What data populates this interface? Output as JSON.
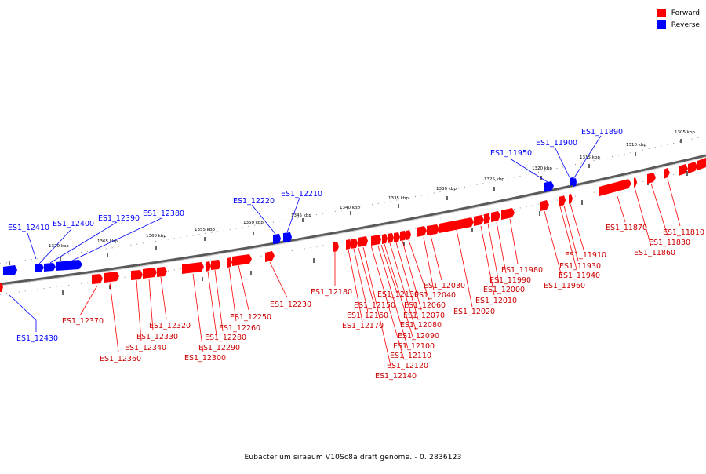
{
  "caption": "Eubacterium siraeum V10Sc8a draft genome. - 0..2836123",
  "colors": {
    "forward": "#ff0000",
    "reverse": "#0000ff",
    "backbone": "#888888"
  },
  "legend": [
    {
      "label": "Forward",
      "color": "#ff0000"
    },
    {
      "label": "Reverse",
      "color": "#0000ff"
    }
  ],
  "scale_labels": [
    "1305 kbp",
    "1310 kbp",
    "1315 kbp",
    "1320 kbp",
    "1325 kbp",
    "1330 kbp",
    "1335 kbp",
    "1340 kbp",
    "1345 kbp",
    "1350 kbp",
    "1355 kbp",
    "1360 kbp",
    "1365 kbp",
    "1370 kbp"
  ],
  "reverse_genes": [
    "ES1_11890",
    "ES1_11900",
    "ES1_11950",
    "ES1_12210",
    "ES1_12220",
    "ES1_12380",
    "ES1_12390",
    "ES1_12400",
    "ES1_12410",
    "ES1_12430"
  ],
  "forward_genes": [
    "ES1_11810",
    "ES1_11830",
    "ES1_11860",
    "ES1_11870",
    "ES1_11910",
    "ES1_11930",
    "ES1_11940",
    "ES1_11960",
    "ES1_11980",
    "ES1_11990",
    "ES1_12000",
    "ES1_12010",
    "ES1_12020",
    "ES1_12030",
    "ES1_12040",
    "ES1_12060",
    "ES1_12070",
    "ES1_12080",
    "ES1_12090",
    "ES1_12100",
    "ES1_12110",
    "ES1_12120",
    "ES1_12130",
    "ES1_12140",
    "ES1_12150",
    "ES1_12160",
    "ES1_12170",
    "ES1_12180",
    "ES1_12230",
    "ES1_12250",
    "ES1_12260",
    "ES1_12280",
    "ES1_12290",
    "ES1_12300",
    "ES1_12320",
    "ES1_12330",
    "ES1_12340",
    "ES1_12360",
    "ES1_12370"
  ]
}
